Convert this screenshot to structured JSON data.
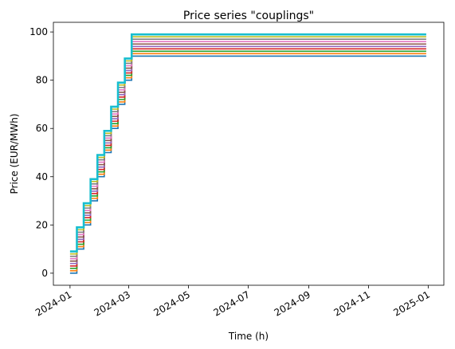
{
  "chart_data": {
    "type": "line",
    "title": "Price series \"couplings\"",
    "xlabel": "Time (h)",
    "ylabel": "Price (EUR/MWh)",
    "x_range": [
      "2023-12-15",
      "2025-01-17"
    ],
    "ylim": [
      -5,
      104
    ],
    "grid": false,
    "legend": "none",
    "line_style": "steps-post",
    "x_tick_labels": [
      "2024-01",
      "2024-03",
      "2024-05",
      "2024-07",
      "2024-09",
      "2024-11",
      "2025-01"
    ],
    "x_tick_dates": [
      "2024-01-01",
      "2024-03-01",
      "2024-05-01",
      "2024-07-01",
      "2024-09-01",
      "2024-11-01",
      "2025-01-01"
    ],
    "y_ticks": [
      0,
      20,
      40,
      60,
      80,
      100
    ],
    "x_steps": [
      "2024-01-01",
      "2024-01-08",
      "2024-01-15",
      "2024-01-22",
      "2024-01-29",
      "2024-02-05",
      "2024-02-12",
      "2024-02-19",
      "2024-02-26",
      "2024-03-04",
      "2024-12-30"
    ],
    "series": [
      {
        "color": "#1f77b4",
        "values": [
          0,
          10,
          20,
          30,
          40,
          50,
          60,
          70,
          80,
          90,
          90
        ]
      },
      {
        "color": "#ff7f0e",
        "values": [
          1,
          11,
          21,
          31,
          41,
          51,
          61,
          71,
          81,
          91,
          91
        ]
      },
      {
        "color": "#2ca02c",
        "values": [
          2,
          12,
          22,
          32,
          42,
          52,
          62,
          72,
          82,
          92,
          92
        ]
      },
      {
        "color": "#d62728",
        "values": [
          3,
          13,
          23,
          33,
          43,
          53,
          63,
          73,
          83,
          93,
          93
        ]
      },
      {
        "color": "#9467bd",
        "values": [
          4,
          14,
          24,
          34,
          44,
          54,
          64,
          74,
          84,
          94,
          94
        ]
      },
      {
        "color": "#8c564b",
        "values": [
          5,
          15,
          25,
          35,
          45,
          55,
          65,
          75,
          85,
          95,
          95
        ]
      },
      {
        "color": "#e377c2",
        "values": [
          6,
          16,
          26,
          36,
          46,
          56,
          66,
          76,
          86,
          96,
          96
        ]
      },
      {
        "color": "#7f7f7f",
        "values": [
          7,
          17,
          27,
          37,
          47,
          57,
          67,
          77,
          87,
          97,
          97
        ]
      },
      {
        "color": "#bcbd22",
        "values": [
          8,
          18,
          28,
          38,
          48,
          58,
          68,
          78,
          88,
          98,
          98
        ]
      },
      {
        "color": "#17becf",
        "values": [
          9,
          19,
          29,
          39,
          49,
          59,
          69,
          79,
          89,
          99,
          99
        ]
      }
    ]
  }
}
